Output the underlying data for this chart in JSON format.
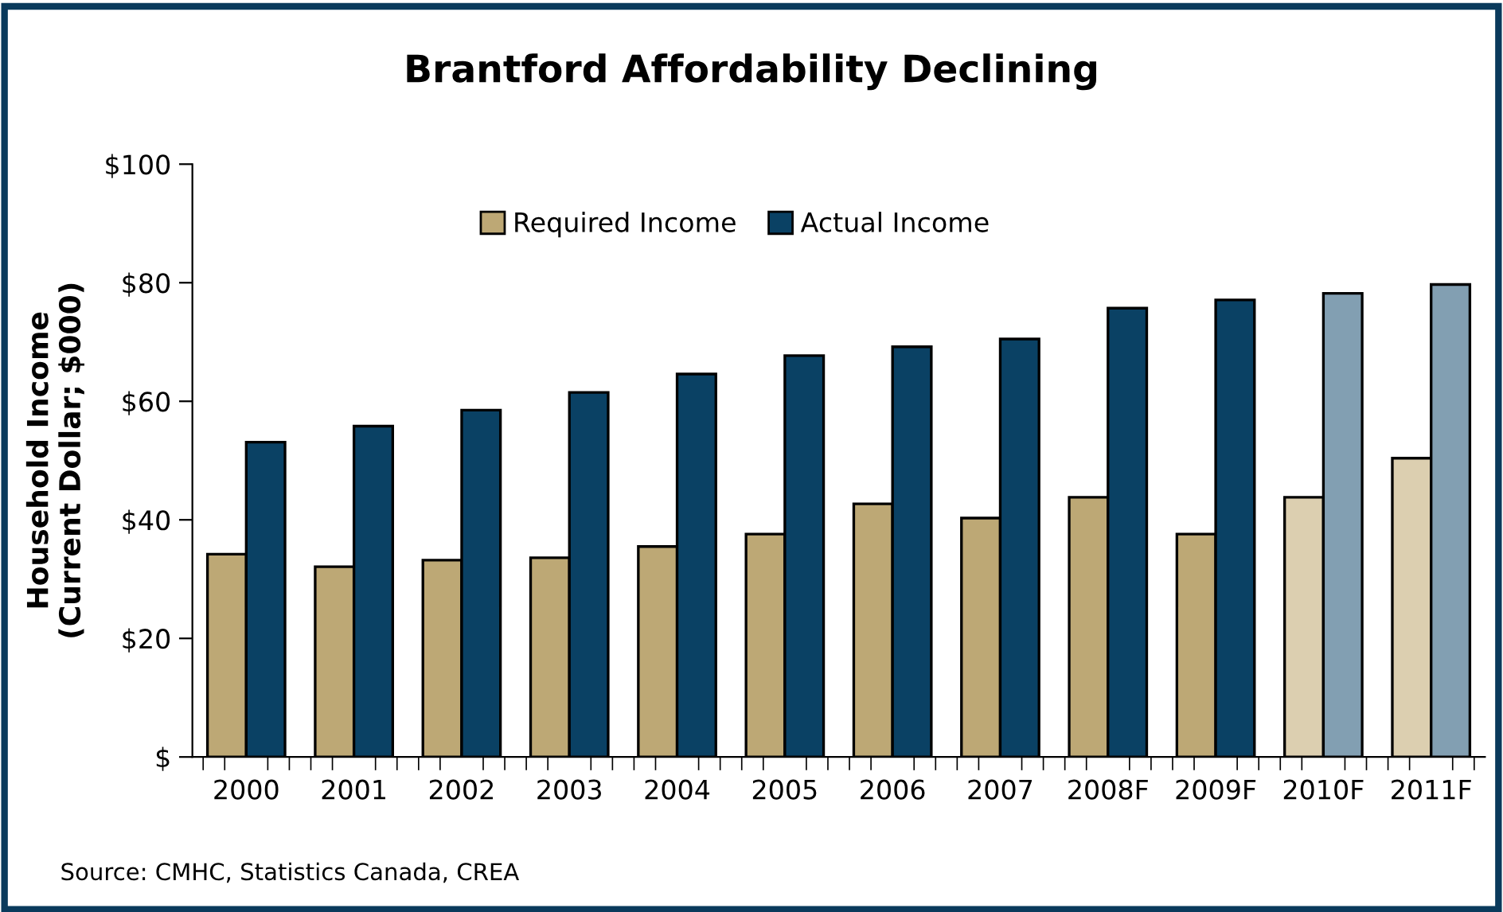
{
  "chart_data": {
    "type": "bar",
    "title": "Brantford Affordability Declining",
    "ylabel": "Household Income\n(Current Dollar; $000)",
    "categories": [
      "2000",
      "2001",
      "2002",
      "2003",
      "2004",
      "2005",
      "2006",
      "2007",
      "2008F",
      "2009F",
      "2010F",
      "2011F"
    ],
    "series": [
      {
        "name": "Required Income",
        "color": "#bda875",
        "colors": [
          "#bda875",
          "#bda875",
          "#bda875",
          "#bda875",
          "#bda875",
          "#bda875",
          "#bda875",
          "#bda875",
          "#bda875",
          "#bda875",
          "#dccfb0",
          "#dccfb0"
        ],
        "values": [
          34.2,
          32.1,
          33.2,
          33.6,
          35.5,
          37.6,
          42.7,
          40.3,
          43.8,
          37.6,
          43.8,
          50.4
        ]
      },
      {
        "name": "Actual Income",
        "color": "#0a4164",
        "colors": [
          "#0a4164",
          "#0a4164",
          "#0a4164",
          "#0a4164",
          "#0a4164",
          "#0a4164",
          "#0a4164",
          "#0a4164",
          "#0a4164",
          "#0a4164",
          "#829fb2",
          "#829fb2"
        ],
        "values": [
          53.1,
          55.8,
          58.5,
          61.5,
          64.6,
          67.7,
          69.2,
          70.5,
          75.7,
          77.1,
          78.2,
          79.7
        ]
      }
    ],
    "ylim": [
      0,
      100
    ],
    "yticks": [
      {
        "value": 0,
        "label": "$"
      },
      {
        "value": 20,
        "label": "$20"
      },
      {
        "value": 40,
        "label": "$40"
      },
      {
        "value": 60,
        "label": "$60"
      },
      {
        "value": 80,
        "label": "$80"
      },
      {
        "value": 100,
        "label": "$100"
      }
    ],
    "grid": false,
    "legend": "top",
    "annotations": [
      "Source: CMHC, Statistics Canada, CREA"
    ]
  }
}
